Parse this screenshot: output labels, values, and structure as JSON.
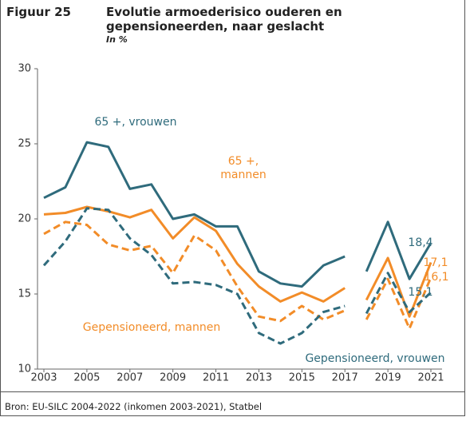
{
  "chart_data": {
    "type": "line",
    "figure_label": "Figuur 25",
    "title": "Evolutie armoederisico ouderen en gepensioneerden, naar geslacht",
    "subtitle": "In %",
    "source": "Bron: EU-SILC 2004-2022 (inkomen 2003-2021), Statbel",
    "x": [
      2003,
      2004,
      2005,
      2006,
      2007,
      2008,
      2009,
      2010,
      2011,
      2012,
      2013,
      2014,
      2015,
      2016,
      2017,
      2018,
      2019,
      2020,
      2021
    ],
    "break_after": 2017,
    "xlim": [
      2003,
      2021
    ],
    "xticks": [
      2003,
      2005,
      2007,
      2009,
      2011,
      2013,
      2015,
      2017,
      2019,
      2021
    ],
    "ylim": [
      10,
      30
    ],
    "yticks": [
      10,
      15,
      20,
      25,
      30
    ],
    "grid": false,
    "series": [
      {
        "name": "65 +, vrouwen",
        "color": "#2f6b7c",
        "dashed": false,
        "values": [
          21.4,
          22.1,
          25.1,
          24.8,
          22.0,
          22.3,
          20.0,
          20.3,
          19.5,
          19.5,
          16.5,
          15.7,
          15.5,
          16.9,
          17.5,
          16.5,
          19.8,
          16.0,
          18.4
        ],
        "value_labels": [
          null,
          null,
          null,
          null,
          null,
          null,
          null,
          null,
          null,
          null,
          null,
          null,
          null,
          null,
          null,
          null,
          null,
          null,
          "18,4"
        ]
      },
      {
        "name": "65 +, mannen",
        "color": "#f28c28",
        "dashed": false,
        "values": [
          20.3,
          20.4,
          20.8,
          20.5,
          20.1,
          20.6,
          18.7,
          20.1,
          19.2,
          17.0,
          15.5,
          14.5,
          15.1,
          14.5,
          15.4,
          14.6,
          17.4,
          13.5,
          17.1
        ],
        "value_labels": [
          null,
          null,
          null,
          null,
          null,
          null,
          null,
          null,
          null,
          null,
          null,
          null,
          null,
          null,
          null,
          null,
          null,
          null,
          "17,1"
        ]
      },
      {
        "name": "Gepensioneerd, mannen",
        "color": "#f28c28",
        "dashed": true,
        "values": [
          19.0,
          19.8,
          19.6,
          18.3,
          17.9,
          18.2,
          16.4,
          18.9,
          17.9,
          15.5,
          13.5,
          13.2,
          14.2,
          13.3,
          13.9,
          13.3,
          16.0,
          12.7,
          16.1
        ],
        "value_labels": [
          null,
          null,
          null,
          null,
          null,
          null,
          null,
          null,
          null,
          null,
          null,
          null,
          null,
          null,
          null,
          null,
          null,
          null,
          "16,1"
        ]
      },
      {
        "name": "Gepensioneerd, vrouwen",
        "color": "#2f6b7c",
        "dashed": true,
        "values": [
          16.9,
          18.5,
          20.7,
          20.6,
          18.7,
          17.6,
          15.7,
          15.8,
          15.6,
          15.0,
          12.4,
          11.7,
          12.4,
          13.8,
          14.2,
          13.7,
          16.4,
          13.8,
          15.1
        ],
        "value_labels": [
          null,
          null,
          null,
          null,
          null,
          null,
          null,
          null,
          null,
          null,
          null,
          null,
          null,
          null,
          null,
          null,
          null,
          null,
          "15,1"
        ]
      }
    ]
  }
}
